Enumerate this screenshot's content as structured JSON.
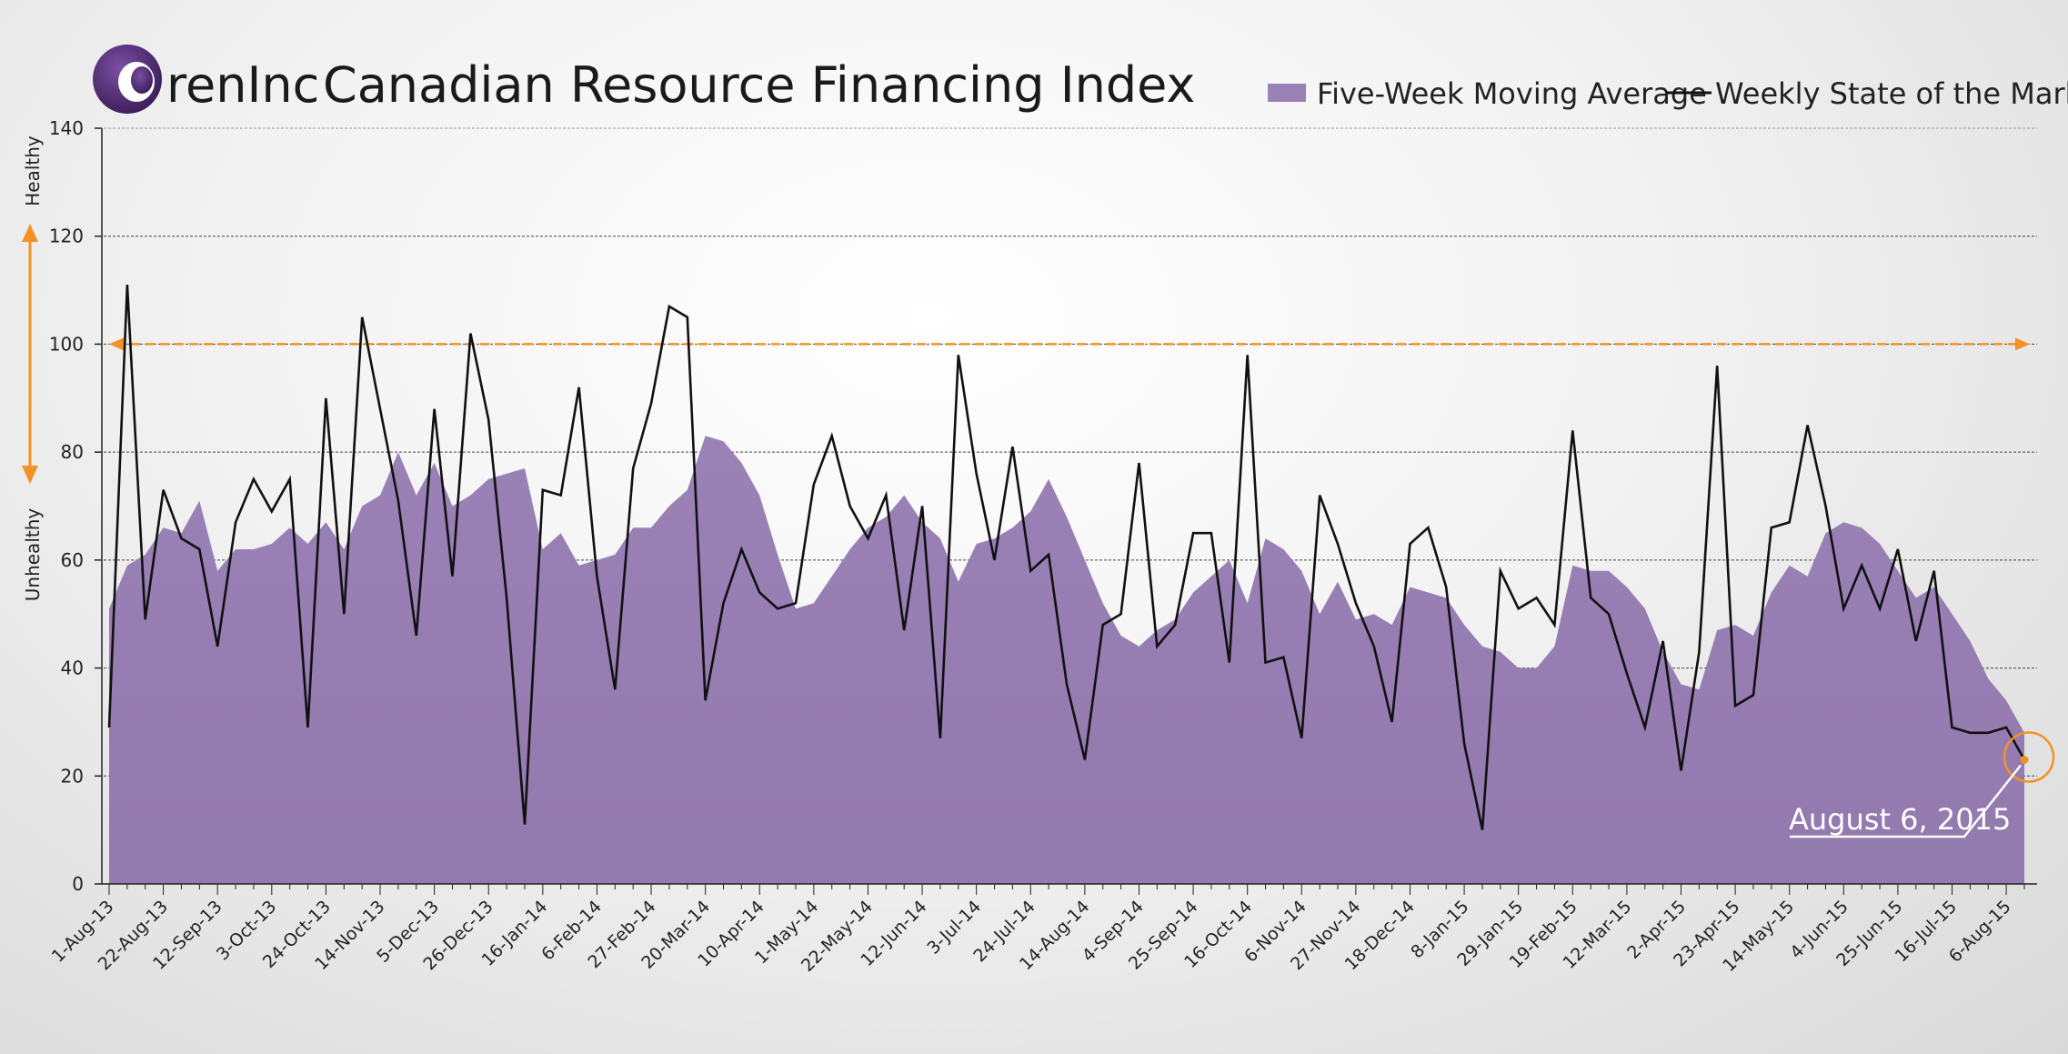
{
  "header": {
    "brand": "renInc",
    "title": "Canadian Resource Financing Index"
  },
  "legend": {
    "area_label": "Five-Week Moving Average",
    "line_label": "Weekly State of the Market"
  },
  "side_labels": {
    "top": "Healthy",
    "bottom": "Unhealthy"
  },
  "annotation": {
    "label": "August 6, 2015"
  },
  "colors": {
    "area": "#9b82b6",
    "line": "#111111",
    "threshold": "#f39224",
    "brand": "#4d2b6e"
  },
  "chart_data": {
    "type": "area",
    "x_tick_labels": [
      "1-Aug-13",
      "22-Aug-13",
      "12-Sep-13",
      "3-Oct-13",
      "24-Oct-13",
      "14-Nov-13",
      "5-Dec-13",
      "26-Dec-13",
      "16-Jan-14",
      "6-Feb-14",
      "27-Feb-14",
      "20-Mar-14",
      "10-Apr-14",
      "1-May-14",
      "22-May-14",
      "12-Jun-14",
      "3-Jul-14",
      "24-Jul-14",
      "14-Aug-14",
      "4-Sep-14",
      "25-Sep-14",
      "16-Oct-14",
      "6-Nov-14",
      "27-Nov-14",
      "18-Dec-14",
      "8-Jan-15",
      "29-Jan-15",
      "19-Feb-15",
      "12-Mar-15",
      "2-Apr-15",
      "23-Apr-15",
      "14-May-15",
      "4-Jun-15",
      "25-Jun-15",
      "16-Jul-15",
      "6-Aug-15"
    ],
    "ylim": [
      0,
      140
    ],
    "y_ticks": [
      0,
      20,
      40,
      60,
      80,
      100,
      120,
      140
    ],
    "grid": true,
    "threshold": 100,
    "series": [
      {
        "name": "Five-Week Moving Average",
        "values": [
          51,
          59,
          61,
          66,
          65,
          71,
          58,
          62,
          62,
          63,
          66,
          63,
          67,
          62,
          70,
          72,
          80,
          72,
          78,
          70,
          72,
          75,
          76,
          77,
          62,
          65,
          59,
          60,
          61,
          66,
          66,
          70,
          73,
          83,
          82,
          78,
          72,
          61,
          51,
          52,
          57,
          62,
          66,
          68,
          72,
          67,
          64,
          56,
          63,
          64,
          66,
          69,
          75,
          68,
          60,
          52,
          46,
          44,
          47,
          49,
          54,
          57,
          60,
          52,
          64,
          62,
          58,
          50,
          56,
          49,
          50,
          48,
          55,
          54,
          53,
          48,
          44,
          43,
          40,
          40,
          44,
          59,
          58,
          58,
          55,
          51,
          43,
          37,
          36,
          47,
          48,
          46,
          54,
          59,
          57,
          65,
          67,
          66,
          63,
          58,
          53,
          55,
          50,
          45,
          38,
          34,
          28
        ]
      },
      {
        "name": "Weekly State of the Market",
        "values": [
          29,
          111,
          49,
          73,
          64,
          62,
          44,
          67,
          75,
          69,
          75,
          29,
          90,
          50,
          105,
          88,
          71,
          46,
          88,
          57,
          102,
          86,
          53,
          11,
          73,
          72,
          92,
          57,
          36,
          77,
          89,
          107,
          105,
          34,
          52,
          62,
          54,
          51,
          52,
          74,
          83,
          70,
          64,
          72,
          47,
          70,
          27,
          98,
          76,
          60,
          81,
          58,
          61,
          37,
          23,
          48,
          50,
          78,
          44,
          48,
          65,
          65,
          41,
          98,
          41,
          42,
          27,
          72,
          63,
          52,
          44,
          30,
          63,
          66,
          55,
          26,
          10,
          58,
          51,
          53,
          48,
          84,
          53,
          50,
          39,
          29,
          45,
          21,
          43,
          96,
          33,
          35,
          66,
          67,
          85,
          70,
          51,
          59,
          51,
          62,
          45,
          58,
          29,
          28,
          28,
          29,
          23
        ]
      }
    ]
  }
}
